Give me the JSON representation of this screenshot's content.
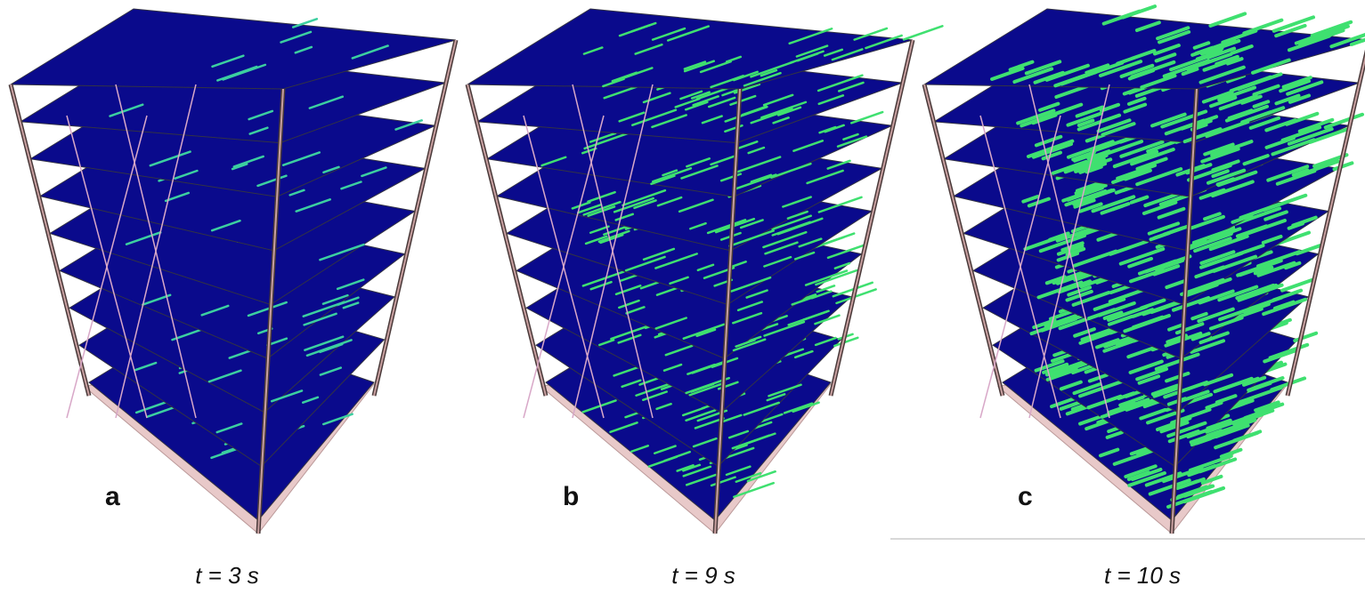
{
  "panels": [
    {
      "label": "a",
      "caption": "t = 3 s"
    },
    {
      "label": "b",
      "caption": "t = 9 s"
    },
    {
      "label": "c",
      "caption": "t = 10 s"
    }
  ]
}
